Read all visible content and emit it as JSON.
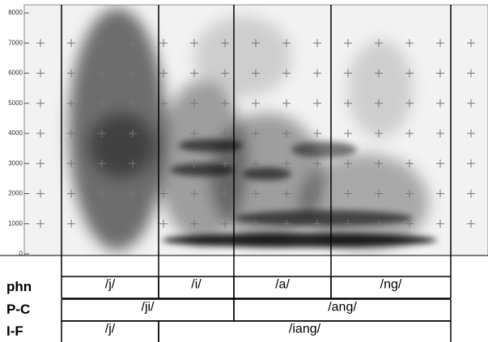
{
  "y_axis": {
    "ticks": [
      0,
      1000,
      2000,
      3000,
      4000,
      5000,
      6000,
      7000,
      8000
    ]
  },
  "tiers": [
    {
      "name": "phn",
      "segments": [
        "/j/",
        "/i/",
        "/a/",
        "/ng/"
      ]
    },
    {
      "name": "P-C",
      "segments": [
        "/ji/",
        "/ang/"
      ]
    },
    {
      "name": "I-F",
      "segments": [
        "/j/",
        "/iang/"
      ]
    }
  ]
}
